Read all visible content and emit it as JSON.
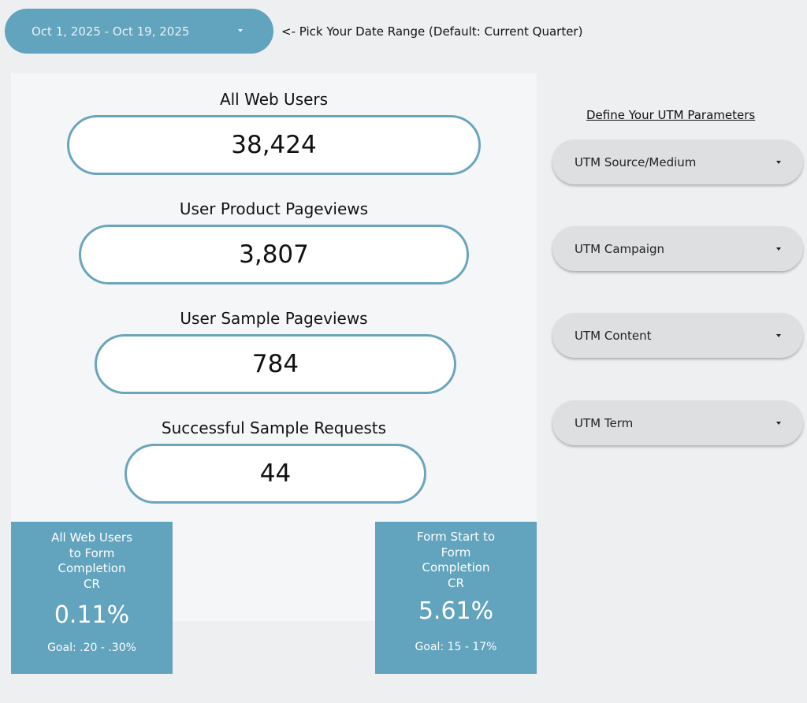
{
  "date_range": {
    "value": "Oct 1, 2025 - Oct 19, 2025",
    "hint": "<- Pick Your Date Range (Default: Current Quarter)"
  },
  "metrics": [
    {
      "label": "All Web Users",
      "value": "38,424"
    },
    {
      "label": "User Product Pageviews",
      "value": "3,807"
    },
    {
      "label": "User Sample Pageviews",
      "value": "784"
    },
    {
      "label": "Successful Sample Requests",
      "value": "44"
    }
  ],
  "conversion_cards": [
    {
      "title_lines": [
        "All Web Users",
        "to Form",
        "Completion",
        "CR"
      ],
      "value": "0.11%",
      "goal": "Goal: .20 - .30%"
    },
    {
      "title_lines": [
        "Form Start to",
        "Form",
        "Completion",
        "CR"
      ],
      "value": "5.61%",
      "goal": "Goal: 15 - 17%"
    }
  ],
  "utm": {
    "heading": "Define Your UTM Parameters",
    "filters": [
      {
        "label": "UTM Source/Medium"
      },
      {
        "label": "UTM Campaign"
      },
      {
        "label": "UTM Content"
      },
      {
        "label": "UTM Term"
      }
    ]
  },
  "colors": {
    "accent": "#62a3bd",
    "panel": "#f5f6f8",
    "background": "#eeeff1",
    "dropdown": "#dedfe1"
  },
  "icons": {
    "dropdown_caret": "caret-down-icon"
  }
}
